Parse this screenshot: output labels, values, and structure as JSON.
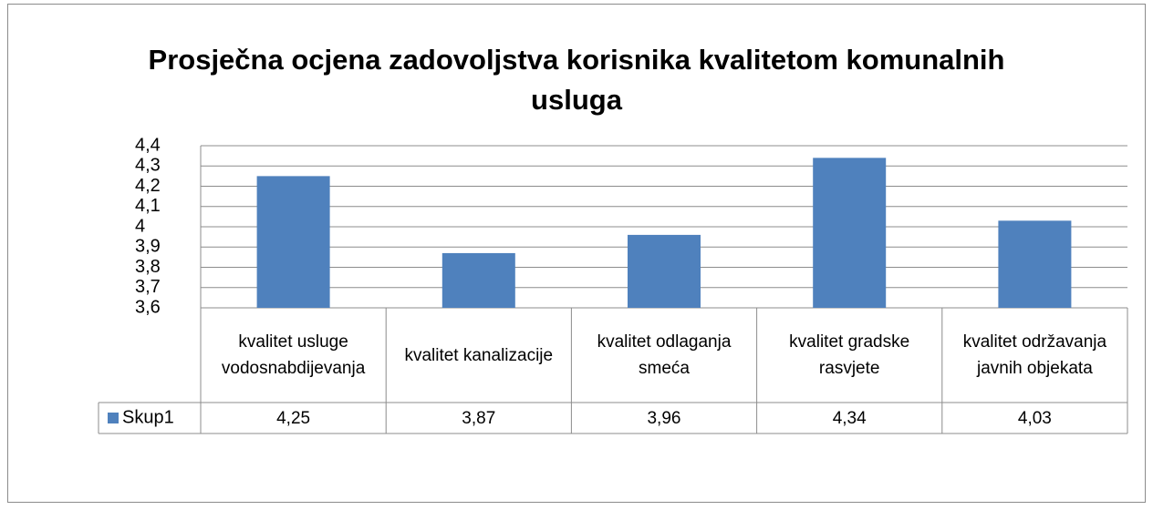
{
  "chart_data": {
    "type": "bar",
    "title": "Prosječna ocjena zadovoljstva korisnika kvalitetom komunalnih usluga",
    "categories": [
      "kvalitet usluge vodosnabdijevanja",
      "kvalitet kanalizacije",
      "kvalitet odlaganja smeća",
      "kvalitet gradske rasvjete",
      "kvalitet održavanja javnih objekata"
    ],
    "series": [
      {
        "name": "Skup1",
        "color": "#4f81bd",
        "values": [
          4.25,
          3.87,
          3.96,
          4.34,
          4.03
        ],
        "value_labels": [
          "4,25",
          "3,87",
          "3,96",
          "4,34",
          "4,03"
        ]
      }
    ],
    "ylim": [
      3.6,
      4.4
    ],
    "yticks": [
      {
        "value": 3.6,
        "label": "3,6"
      },
      {
        "value": 3.7,
        "label": "3,7"
      },
      {
        "value": 3.8,
        "label": "3,8"
      },
      {
        "value": 3.9,
        "label": "3,9"
      },
      4,
      {
        "value": 4.1,
        "label": "4,1"
      },
      {
        "value": 4.2,
        "label": "4,2"
      },
      {
        "value": 4.3,
        "label": "4,3"
      },
      {
        "value": 4.4,
        "label": "4,4"
      }
    ],
    "grid": true
  }
}
